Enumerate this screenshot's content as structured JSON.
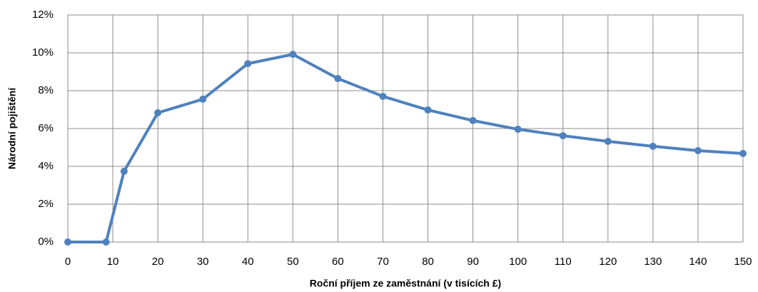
{
  "chart_data": {
    "type": "line",
    "x_label": "Roční příjem ze zaměstnání (v tisících £)",
    "y_label": "Národní pojištění",
    "x": [
      0,
      8.5,
      12.5,
      20,
      30,
      40,
      50,
      60,
      70,
      80,
      90,
      100,
      110,
      120,
      130,
      140,
      150
    ],
    "series": [
      {
        "name": "Národní pojištění",
        "color": "#4f81bd",
        "values": [
          0,
          0,
          3.74,
          6.83,
          7.55,
          9.43,
          9.92,
          8.64,
          7.7,
          6.98,
          6.42,
          5.96,
          5.62,
          5.32,
          5.06,
          4.83,
          4.68
        ]
      }
    ],
    "xlim": [
      0,
      150
    ],
    "xticks": [
      0,
      10,
      20,
      30,
      40,
      50,
      60,
      70,
      80,
      90,
      100,
      110,
      120,
      130,
      140,
      150
    ],
    "ylim": [
      0,
      12
    ],
    "yticks": [
      {
        "value": 0,
        "label": "0%"
      },
      {
        "value": 2,
        "label": "2%"
      },
      {
        "value": 4,
        "label": "4%"
      },
      {
        "value": 6,
        "label": "6%"
      },
      {
        "value": 8,
        "label": "8%"
      },
      {
        "value": 10,
        "label": "10%"
      },
      {
        "value": 12,
        "label": "12%"
      }
    ],
    "grid": true
  }
}
